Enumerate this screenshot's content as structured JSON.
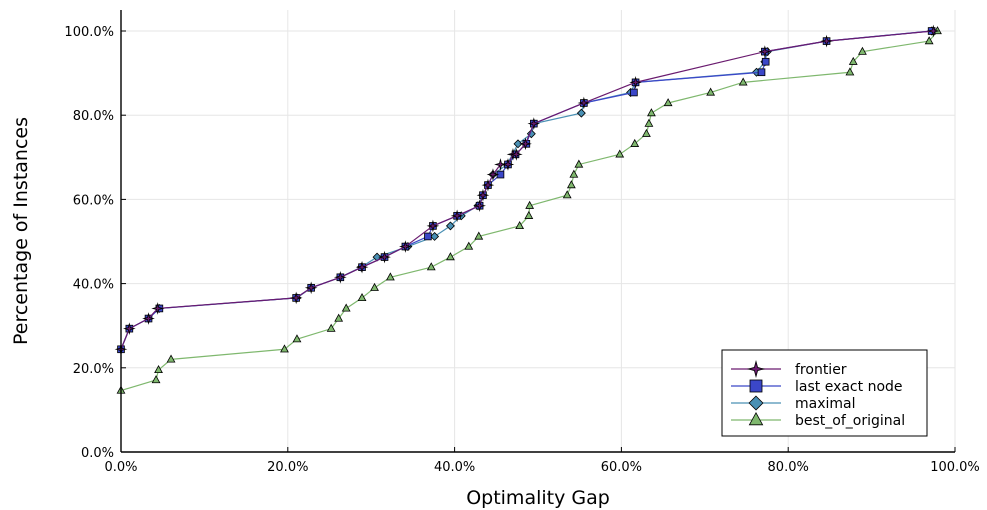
{
  "chart_data": {
    "type": "line",
    "title": "",
    "xlabel": "Optimality Gap",
    "ylabel": "Percentage of Instances",
    "xlim": [
      0,
      100
    ],
    "ylim": [
      0,
      100
    ],
    "xticks": [
      "0.0%",
      "20.0%",
      "40.0%",
      "60.0%",
      "80.0%",
      "100.0%"
    ],
    "yticks": [
      "0.0%",
      "20.0%",
      "40.0%",
      "60.0%",
      "80.0%",
      "100.0%"
    ],
    "grid": true,
    "legend_position": "bottom-right",
    "series": [
      {
        "name": "frontier",
        "color": "#6a1b6f",
        "marker": "star",
        "points": [
          [
            0,
            24.4
          ],
          [
            1,
            29.3
          ],
          [
            3.3,
            31.7
          ],
          [
            4.4,
            34.1
          ],
          [
            21,
            36.6
          ],
          [
            22.8,
            39
          ],
          [
            26.3,
            41.5
          ],
          [
            28.9,
            43.9
          ],
          [
            31.6,
            46.3
          ],
          [
            34.1,
            48.8
          ],
          [
            37.4,
            53.7
          ],
          [
            40.3,
            56.1
          ],
          [
            43,
            58.5
          ],
          [
            43.4,
            61
          ],
          [
            44,
            63.4
          ],
          [
            44.6,
            65.9
          ],
          [
            45.5,
            68.3
          ],
          [
            46.4,
            68.3
          ],
          [
            47,
            70.7
          ],
          [
            47.4,
            70.7
          ],
          [
            48.5,
            73.2
          ],
          [
            49.5,
            78
          ],
          [
            55.5,
            82.9
          ],
          [
            61.7,
            87.8
          ],
          [
            77.2,
            95.1
          ],
          [
            84.6,
            97.6
          ],
          [
            97.4,
            100
          ]
        ]
      },
      {
        "name": "last exact node",
        "color": "#3b47c8",
        "marker": "square",
        "points": [
          [
            0,
            24.4
          ],
          [
            1,
            29.3
          ],
          [
            3.3,
            31.7
          ],
          [
            4.6,
            34.1
          ],
          [
            21,
            36.6
          ],
          [
            22.8,
            39
          ],
          [
            26.3,
            41.5
          ],
          [
            28.9,
            43.9
          ],
          [
            31.6,
            46.3
          ],
          [
            34.1,
            48.8
          ],
          [
            36.8,
            51.2
          ],
          [
            37.4,
            53.7
          ],
          [
            40.3,
            56.1
          ],
          [
            43,
            58.5
          ],
          [
            43.4,
            61
          ],
          [
            44,
            63.4
          ],
          [
            45.5,
            65.9
          ],
          [
            46.4,
            68.3
          ],
          [
            47.3,
            70.7
          ],
          [
            48.6,
            73.2
          ],
          [
            49.5,
            78
          ],
          [
            55.5,
            82.9
          ],
          [
            61.5,
            85.4
          ],
          [
            61.7,
            87.8
          ],
          [
            76.8,
            90.2
          ],
          [
            77.3,
            92.7
          ],
          [
            77.2,
            95.1
          ],
          [
            84.6,
            97.6
          ],
          [
            97.2,
            100
          ]
        ]
      },
      {
        "name": "maximal",
        "color": "#4a90b4",
        "marker": "diamond",
        "points": [
          [
            0,
            24.4
          ],
          [
            1,
            29.3
          ],
          [
            3.3,
            31.7
          ],
          [
            4.6,
            34.1
          ],
          [
            21.1,
            36.6
          ],
          [
            22.8,
            39
          ],
          [
            26.3,
            41.5
          ],
          [
            28.8,
            43.9
          ],
          [
            30.7,
            46.3
          ],
          [
            34.4,
            48.8
          ],
          [
            37.6,
            51.2
          ],
          [
            39.5,
            53.7
          ],
          [
            40.8,
            56.1
          ],
          [
            42.8,
            58.5
          ],
          [
            43.4,
            61
          ],
          [
            44,
            63.4
          ],
          [
            44.6,
            65.9
          ],
          [
            46.3,
            68.3
          ],
          [
            47.6,
            73.2
          ],
          [
            49.2,
            75.6
          ],
          [
            49.5,
            78
          ],
          [
            55.2,
            80.5
          ],
          [
            55.5,
            82.9
          ],
          [
            61.1,
            85.4
          ],
          [
            61.7,
            87.8
          ],
          [
            76.2,
            90.2
          ],
          [
            77.2,
            92.7
          ],
          [
            77.5,
            95.1
          ],
          [
            84.6,
            97.6
          ],
          [
            97.2,
            100
          ]
        ]
      },
      {
        "name": "best_of_original",
        "color": "#7fb86e",
        "marker": "triangle",
        "points": [
          [
            0,
            14.6
          ],
          [
            4.2,
            17.1
          ],
          [
            4.5,
            19.5
          ],
          [
            6,
            22
          ],
          [
            19.6,
            24.4
          ],
          [
            21.1,
            26.8
          ],
          [
            25.2,
            29.3
          ],
          [
            26.1,
            31.7
          ],
          [
            27,
            34.1
          ],
          [
            28.9,
            36.6
          ],
          [
            30.4,
            39
          ],
          [
            32.3,
            41.5
          ],
          [
            37.2,
            43.9
          ],
          [
            39.5,
            46.3
          ],
          [
            41.7,
            48.8
          ],
          [
            42.9,
            51.2
          ],
          [
            47.8,
            53.7
          ],
          [
            48.9,
            56.1
          ],
          [
            49,
            58.5
          ],
          [
            53.5,
            61
          ],
          [
            54,
            63.4
          ],
          [
            54.3,
            65.9
          ],
          [
            54.9,
            68.3
          ],
          [
            59.8,
            70.7
          ],
          [
            61.6,
            73.2
          ],
          [
            63,
            75.6
          ],
          [
            63.3,
            78
          ],
          [
            63.6,
            80.5
          ],
          [
            65.6,
            82.9
          ],
          [
            70.7,
            85.4
          ],
          [
            74.6,
            87.8
          ],
          [
            87.4,
            90.2
          ],
          [
            87.8,
            92.7
          ],
          [
            88.9,
            95.1
          ],
          [
            96.9,
            97.6
          ],
          [
            97.9,
            100
          ]
        ]
      }
    ]
  }
}
